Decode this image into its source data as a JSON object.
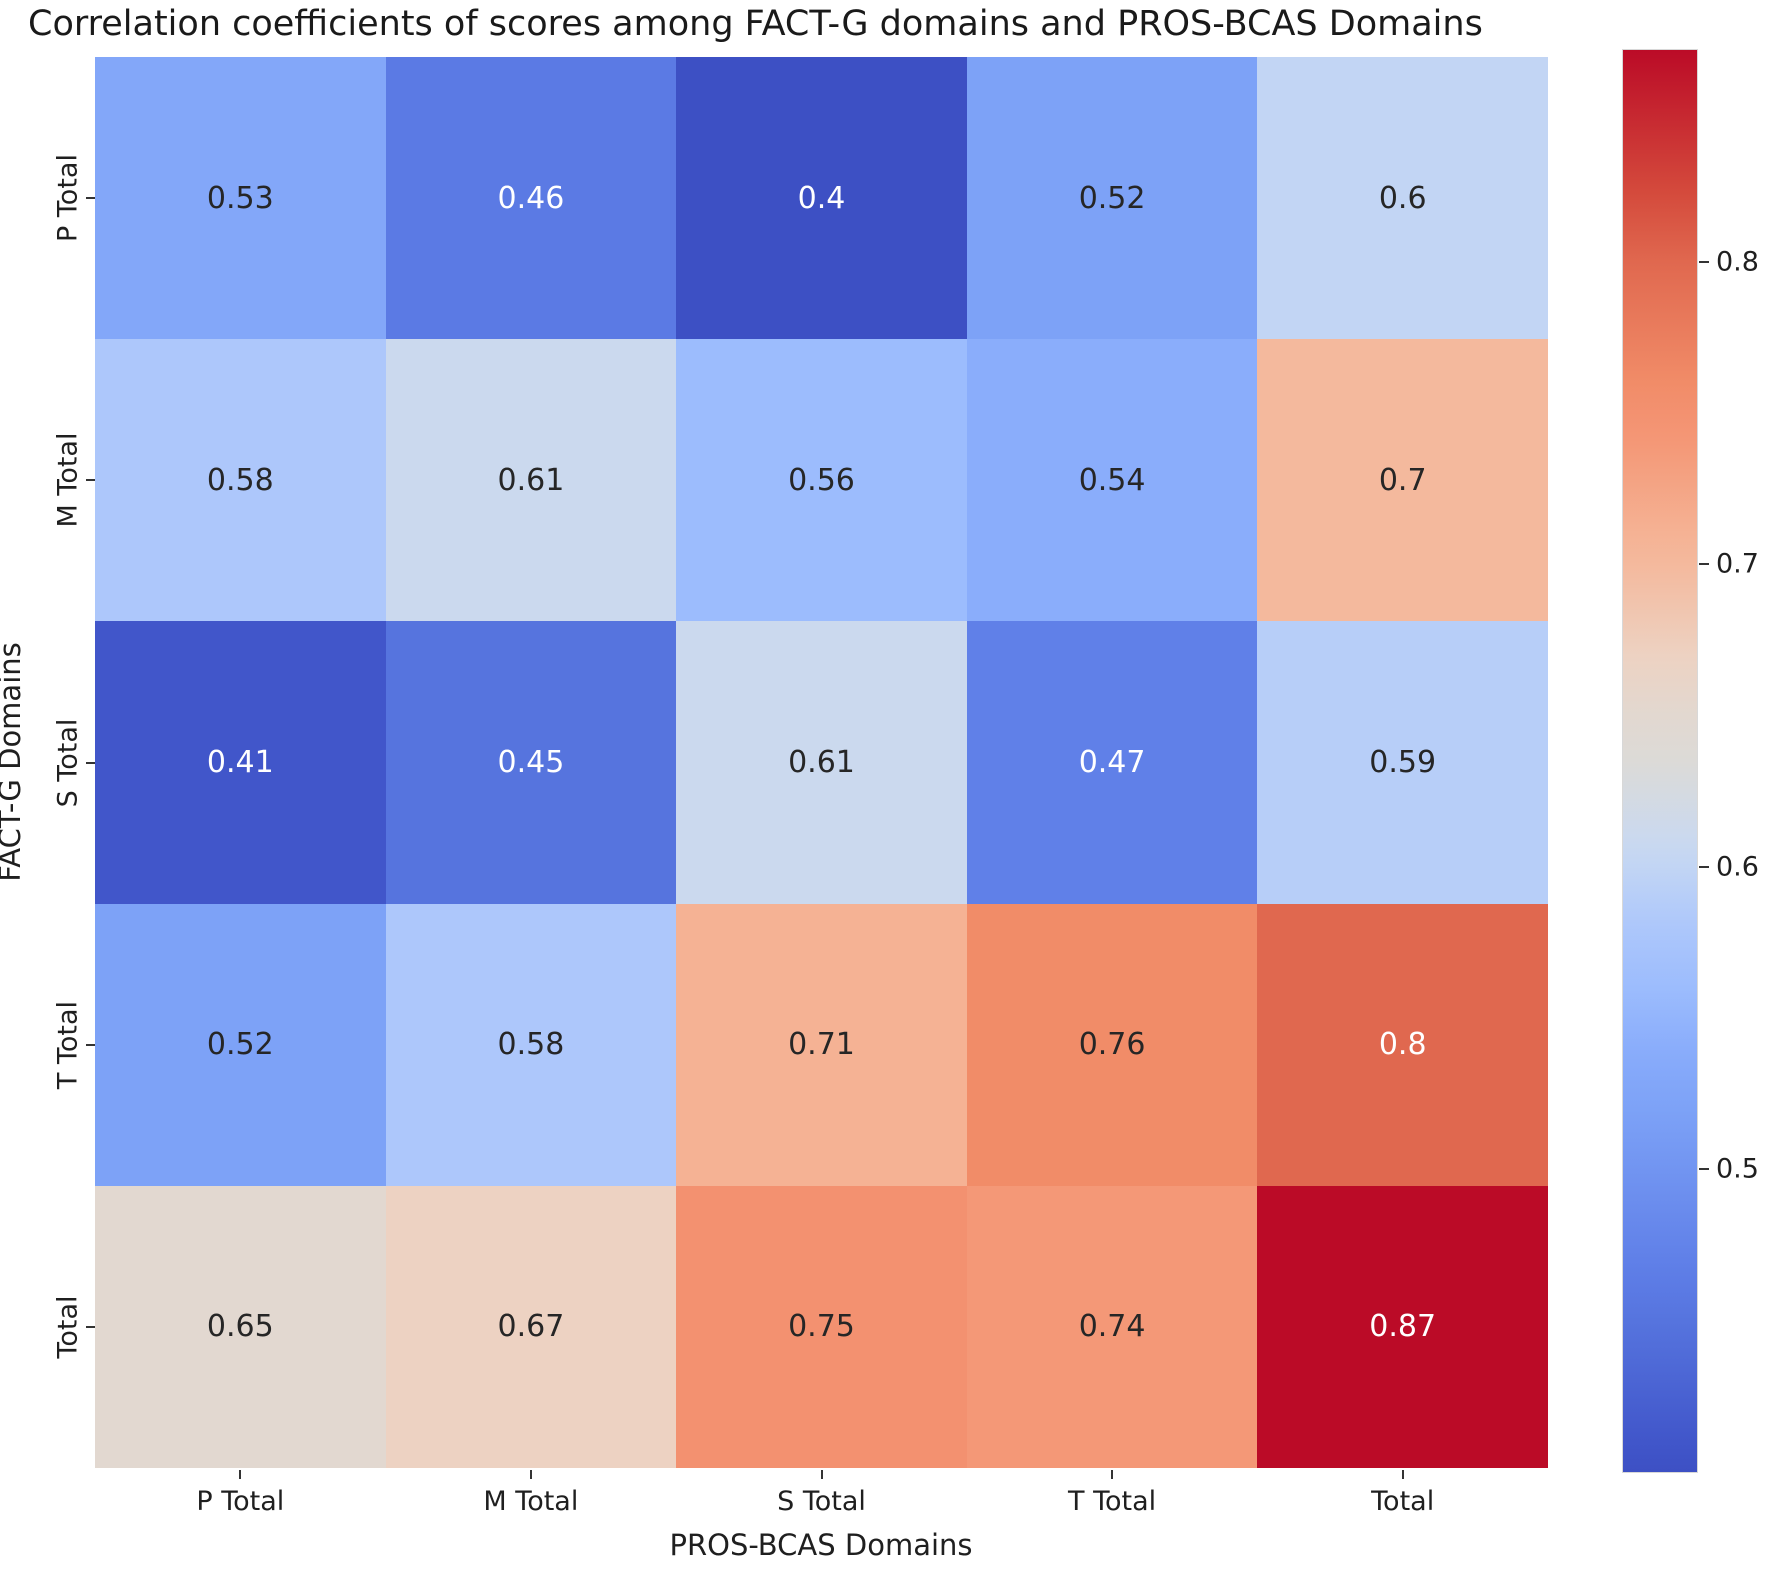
{
  "chart_data": {
    "type": "heatmap",
    "title": "Correlation coefficients of scores among FACT-G domains and PROS-BCAS Domains",
    "xlabel": "PROS-BCAS Domains",
    "ylabel": "FACT-G Domains",
    "x_categories": [
      "P Total",
      "M Total",
      "S Total",
      "T Total",
      "Total"
    ],
    "y_categories": [
      "P Total",
      "M Total",
      "S Total",
      "T Total",
      "Total"
    ],
    "values": [
      [
        0.53,
        0.46,
        0.4,
        0.52,
        0.6
      ],
      [
        0.58,
        0.61,
        0.56,
        0.54,
        0.7
      ],
      [
        0.41,
        0.45,
        0.61,
        0.47,
        0.59
      ],
      [
        0.52,
        0.58,
        0.71,
        0.76,
        0.8
      ],
      [
        0.65,
        0.67,
        0.75,
        0.74,
        0.87
      ]
    ],
    "cell_labels": [
      [
        "0.53",
        "0.46",
        "0.4",
        "0.52",
        "0.6"
      ],
      [
        "0.58",
        "0.61",
        "0.56",
        "0.54",
        "0.7"
      ],
      [
        "0.41",
        "0.45",
        "0.61",
        "0.47",
        "0.59"
      ],
      [
        "0.52",
        "0.58",
        "0.71",
        "0.76",
        "0.8"
      ],
      [
        "0.65",
        "0.67",
        "0.75",
        "0.74",
        "0.87"
      ]
    ],
    "vmin": 0.4,
    "vmax": 0.87,
    "colormap": "coolwarm",
    "colorbar_ticks": [
      0.8,
      0.7,
      0.6,
      0.5
    ],
    "colorbar_tick_labels": [
      "0.8",
      "0.7",
      "0.6",
      "0.5"
    ],
    "legend_position": "right-colorbar",
    "grid": false,
    "colormap_anchors": [
      [
        0.0,
        "#3d50c4"
      ],
      [
        0.021,
        "#4156ca"
      ],
      [
        0.106,
        "#5674de"
      ],
      [
        0.128,
        "#5b7ae4"
      ],
      [
        0.149,
        "#6080e8"
      ],
      [
        0.255,
        "#7da2f7"
      ],
      [
        0.277,
        "#83a7f9"
      ],
      [
        0.298,
        "#8aadfb"
      ],
      [
        0.34,
        "#9cbcfd"
      ],
      [
        0.383,
        "#adc7fb"
      ],
      [
        0.404,
        "#b7cef8"
      ],
      [
        0.426,
        "#c2d5f4"
      ],
      [
        0.447,
        "#cbd9ee"
      ],
      [
        0.5,
        "#dcdad7"
      ],
      [
        0.532,
        "#e2d8d0"
      ],
      [
        0.574,
        "#edd2c2"
      ],
      [
        0.638,
        "#f4b99d"
      ],
      [
        0.66,
        "#f5b294"
      ],
      [
        0.723,
        "#f49877"
      ],
      [
        0.745,
        "#f39170"
      ],
      [
        0.766,
        "#f18c68"
      ],
      [
        0.851,
        "#e0684f"
      ],
      [
        0.9,
        "#d44a3c"
      ],
      [
        1.0,
        "#bb0b27"
      ]
    ],
    "annotation_dark_text_color": "#262626",
    "annotation_light_text_color": "#ffffff",
    "tick_color": "#333333"
  }
}
